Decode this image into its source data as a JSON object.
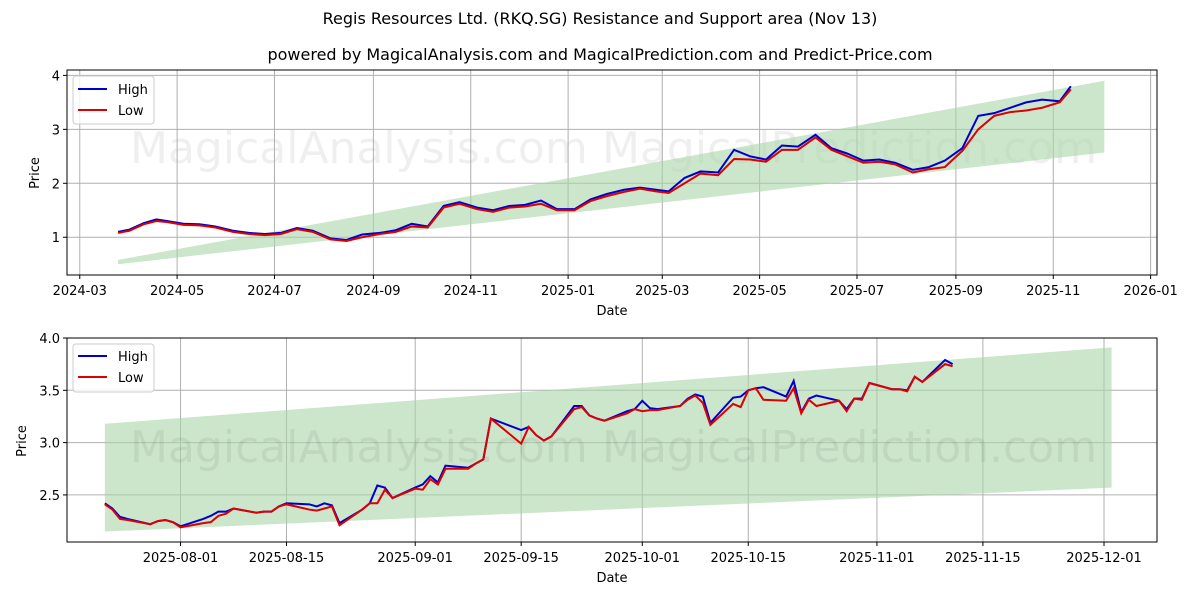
{
  "title": "Regis Resources Ltd. (RKQ.SG) Resistance and Support area (Nov 13)",
  "subtitle": "powered by MagicalAnalysis.com and MagicalPrediction.com and Predict-Price.com",
  "watermarks": [
    "MagicalAnalysis.com",
    "MagicalPrediction.com"
  ],
  "colors": {
    "high": "#0000cc",
    "low": "#dd0000",
    "band": "#a8d5a8",
    "grid": "#b0b0b0"
  },
  "legend": {
    "high": "High",
    "low": "Low"
  },
  "chart_data": [
    {
      "type": "line",
      "title": "Full history",
      "xlabel": "Date",
      "ylabel": "Price",
      "ylim": [
        0.3,
        4.1
      ],
      "yticks": [
        1,
        2,
        3,
        4
      ],
      "xticks": [
        "2024-03",
        "2024-05",
        "2024-07",
        "2024-09",
        "2024-11",
        "2025-01",
        "2025-03",
        "2025-05",
        "2025-07",
        "2025-09",
        "2025-11",
        "2026-01"
      ],
      "grid": true,
      "legend_position": "upper left",
      "band": {
        "x_start": "2024-03-25",
        "x_end": "2025-12-03",
        "lower_start": 0.5,
        "lower_end": 2.57,
        "upper_start": 0.58,
        "upper_end": 3.9
      },
      "x": [
        "2024-03-25",
        "2024-04-01",
        "2024-04-10",
        "2024-04-18",
        "2024-04-25",
        "2024-05-05",
        "2024-05-15",
        "2024-05-25",
        "2024-06-05",
        "2024-06-15",
        "2024-06-25",
        "2024-07-05",
        "2024-07-15",
        "2024-07-25",
        "2024-08-05",
        "2024-08-15",
        "2024-08-25",
        "2024-09-05",
        "2024-09-15",
        "2024-09-25",
        "2024-10-05",
        "2024-10-15",
        "2024-10-25",
        "2024-11-05",
        "2024-11-15",
        "2024-11-25",
        "2024-12-05",
        "2024-12-15",
        "2024-12-25",
        "2025-01-05",
        "2025-01-15",
        "2025-01-25",
        "2025-02-05",
        "2025-02-15",
        "2025-02-25",
        "2025-03-05",
        "2025-03-15",
        "2025-03-25",
        "2025-04-05",
        "2025-04-15",
        "2025-04-25",
        "2025-05-05",
        "2025-05-15",
        "2025-05-25",
        "2025-06-05",
        "2025-06-15",
        "2025-06-25",
        "2025-07-05",
        "2025-07-15",
        "2025-07-25",
        "2025-08-05",
        "2025-08-15",
        "2025-08-25",
        "2025-09-05",
        "2025-09-15",
        "2025-09-25",
        "2025-10-05",
        "2025-10-15",
        "2025-10-25",
        "2025-11-05",
        "2025-11-12"
      ],
      "series": [
        {
          "name": "High",
          "values": [
            1.1,
            1.14,
            1.26,
            1.33,
            1.3,
            1.25,
            1.24,
            1.2,
            1.12,
            1.08,
            1.06,
            1.08,
            1.17,
            1.12,
            0.98,
            0.95,
            1.05,
            1.08,
            1.13,
            1.25,
            1.2,
            1.58,
            1.65,
            1.55,
            1.5,
            1.58,
            1.6,
            1.68,
            1.52,
            1.52,
            1.7,
            1.8,
            1.88,
            1.92,
            1.88,
            1.85,
            2.1,
            2.22,
            2.2,
            2.62,
            2.5,
            2.44,
            2.7,
            2.68,
            2.9,
            2.65,
            2.55,
            2.42,
            2.44,
            2.38,
            2.25,
            2.3,
            2.42,
            2.65,
            3.25,
            3.3,
            3.4,
            3.5,
            3.55,
            3.52,
            3.8
          ]
        },
        {
          "name": "Low",
          "values": [
            1.08,
            1.12,
            1.24,
            1.3,
            1.28,
            1.23,
            1.22,
            1.18,
            1.1,
            1.06,
            1.04,
            1.06,
            1.15,
            1.1,
            0.96,
            0.93,
            1.0,
            1.06,
            1.1,
            1.2,
            1.18,
            1.55,
            1.62,
            1.52,
            1.47,
            1.55,
            1.57,
            1.62,
            1.5,
            1.5,
            1.67,
            1.76,
            1.84,
            1.9,
            1.85,
            1.82,
            2.0,
            2.18,
            2.15,
            2.45,
            2.44,
            2.4,
            2.62,
            2.62,
            2.85,
            2.62,
            2.5,
            2.38,
            2.4,
            2.35,
            2.2,
            2.26,
            2.3,
            2.6,
            3.0,
            3.25,
            3.32,
            3.35,
            3.4,
            3.5,
            3.74
          ]
        }
      ]
    },
    {
      "type": "line",
      "title": "Recent zoom",
      "xlabel": "Date",
      "ylabel": "Price",
      "ylim": [
        2.05,
        4.0
      ],
      "yticks": [
        2.5,
        3.0,
        3.5,
        4.0
      ],
      "ytick_labels": [
        "2.5",
        "3.0",
        "3.5",
        "4.0"
      ],
      "xticks": [
        "2025-08-01",
        "2025-08-15",
        "2025-09-01",
        "2025-09-15",
        "2025-10-01",
        "2025-10-15",
        "2025-11-01",
        "2025-11-15",
        "2025-12-01"
      ],
      "grid": true,
      "legend_position": "upper left",
      "band": {
        "x_start": "2025-07-22",
        "x_end": "2025-12-02",
        "lower_start": 2.15,
        "lower_end": 2.57,
        "upper_start": 3.18,
        "upper_end": 3.91
      },
      "x": [
        "2025-07-22",
        "2025-07-23",
        "2025-07-24",
        "2025-07-25",
        "2025-07-28",
        "2025-07-29",
        "2025-07-30",
        "2025-07-31",
        "2025-08-01",
        "2025-08-04",
        "2025-08-05",
        "2025-08-06",
        "2025-08-07",
        "2025-08-08",
        "2025-08-11",
        "2025-08-12",
        "2025-08-13",
        "2025-08-14",
        "2025-08-15",
        "2025-08-18",
        "2025-08-19",
        "2025-08-20",
        "2025-08-21",
        "2025-08-22",
        "2025-08-25",
        "2025-08-26",
        "2025-08-27",
        "2025-08-28",
        "2025-08-29",
        "2025-09-01",
        "2025-09-02",
        "2025-09-03",
        "2025-09-04",
        "2025-09-05",
        "2025-09-08",
        "2025-09-09",
        "2025-09-10",
        "2025-09-11",
        "2025-09-15",
        "2025-09-16",
        "2025-09-17",
        "2025-09-18",
        "2025-09-19",
        "2025-09-22",
        "2025-09-23",
        "2025-09-24",
        "2025-09-25",
        "2025-09-26",
        "2025-09-29",
        "2025-09-30",
        "2025-10-01",
        "2025-10-02",
        "2025-10-03",
        "2025-10-06",
        "2025-10-07",
        "2025-10-08",
        "2025-10-09",
        "2025-10-10",
        "2025-10-13",
        "2025-10-14",
        "2025-10-15",
        "2025-10-16",
        "2025-10-17",
        "2025-10-20",
        "2025-10-21",
        "2025-10-22",
        "2025-10-23",
        "2025-10-24",
        "2025-10-27",
        "2025-10-28",
        "2025-10-29",
        "2025-10-30",
        "2025-10-31",
        "2025-11-03",
        "2025-11-04",
        "2025-11-05",
        "2025-11-06",
        "2025-11-07",
        "2025-11-10",
        "2025-11-11"
      ],
      "series": [
        {
          "name": "High",
          "values": [
            2.42,
            2.37,
            2.29,
            2.27,
            2.22,
            2.25,
            2.26,
            2.24,
            2.2,
            2.27,
            2.3,
            2.34,
            2.34,
            2.37,
            2.33,
            2.34,
            2.34,
            2.39,
            2.42,
            2.41,
            2.39,
            2.42,
            2.4,
            2.23,
            2.36,
            2.42,
            2.59,
            2.57,
            2.47,
            2.57,
            2.6,
            2.68,
            2.62,
            2.78,
            2.76,
            2.8,
            2.84,
            3.23,
            3.12,
            3.15,
            3.07,
            3.02,
            3.06,
            3.35,
            3.35,
            3.26,
            3.23,
            3.21,
            3.3,
            3.32,
            3.4,
            3.33,
            3.32,
            3.35,
            3.42,
            3.46,
            3.44,
            3.19,
            3.43,
            3.44,
            3.5,
            3.52,
            3.53,
            3.44,
            3.59,
            3.29,
            3.42,
            3.45,
            3.4,
            3.32,
            3.42,
            3.42,
            3.57,
            3.51,
            3.51,
            3.5,
            3.63,
            3.58,
            3.79,
            3.75
          ]
        },
        {
          "name": "Low",
          "values": [
            2.41,
            2.36,
            2.27,
            2.26,
            2.22,
            2.25,
            2.26,
            2.24,
            2.19,
            2.23,
            2.24,
            2.3,
            2.32,
            2.37,
            2.33,
            2.34,
            2.34,
            2.39,
            2.41,
            2.36,
            2.35,
            2.37,
            2.39,
            2.21,
            2.36,
            2.42,
            2.42,
            2.55,
            2.47,
            2.56,
            2.55,
            2.65,
            2.6,
            2.75,
            2.75,
            2.8,
            2.84,
            3.23,
            2.99,
            3.15,
            3.07,
            3.02,
            3.06,
            3.32,
            3.34,
            3.26,
            3.23,
            3.21,
            3.28,
            3.32,
            3.3,
            3.31,
            3.31,
            3.35,
            3.41,
            3.45,
            3.38,
            3.17,
            3.37,
            3.34,
            3.5,
            3.52,
            3.41,
            3.4,
            3.52,
            3.28,
            3.41,
            3.35,
            3.4,
            3.3,
            3.42,
            3.41,
            3.57,
            3.51,
            3.51,
            3.49,
            3.63,
            3.58,
            3.75,
            3.73
          ]
        }
      ]
    }
  ]
}
